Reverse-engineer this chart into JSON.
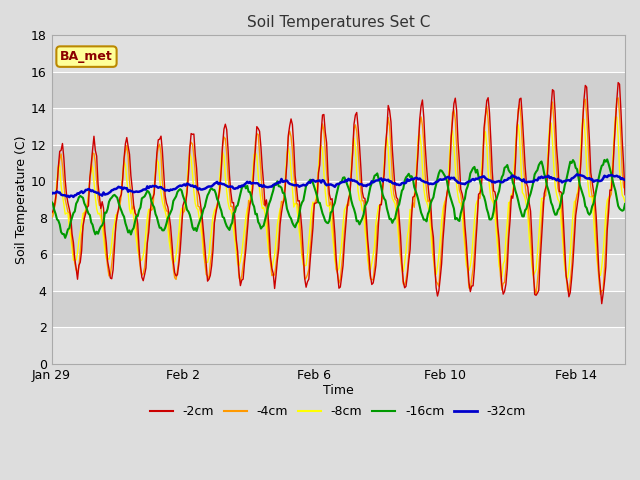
{
  "title": "Soil Temperatures Set C",
  "xlabel": "Time",
  "ylabel": "Soil Temperature (C)",
  "ylim": [
    0,
    18
  ],
  "yticks": [
    0,
    2,
    4,
    6,
    8,
    10,
    12,
    14,
    16,
    18
  ],
  "colors": {
    "-2cm": "#cc0000",
    "-4cm": "#ff9900",
    "-8cm": "#ffff00",
    "-16cm": "#009900",
    "-32cm": "#0000cc"
  },
  "legend_labels": [
    "-2cm",
    "-4cm",
    "-8cm",
    "-16cm",
    "-32cm"
  ],
  "annotation_text": "BA_met",
  "annotation_bg": "#ffff99",
  "annotation_border": "#bb8800",
  "fig_facecolor": "#dddddd",
  "plot_facecolor": "#e8e8e8",
  "band_colors": [
    "#e0e0e0",
    "#d0d0d0"
  ],
  "grid_color": "#ffffff",
  "x_tick_labels": [
    "Jan 29",
    "Feb 2",
    "Feb 6",
    "Feb 10",
    "Feb 14"
  ],
  "x_tick_positions": [
    0,
    4,
    8,
    12,
    16
  ]
}
